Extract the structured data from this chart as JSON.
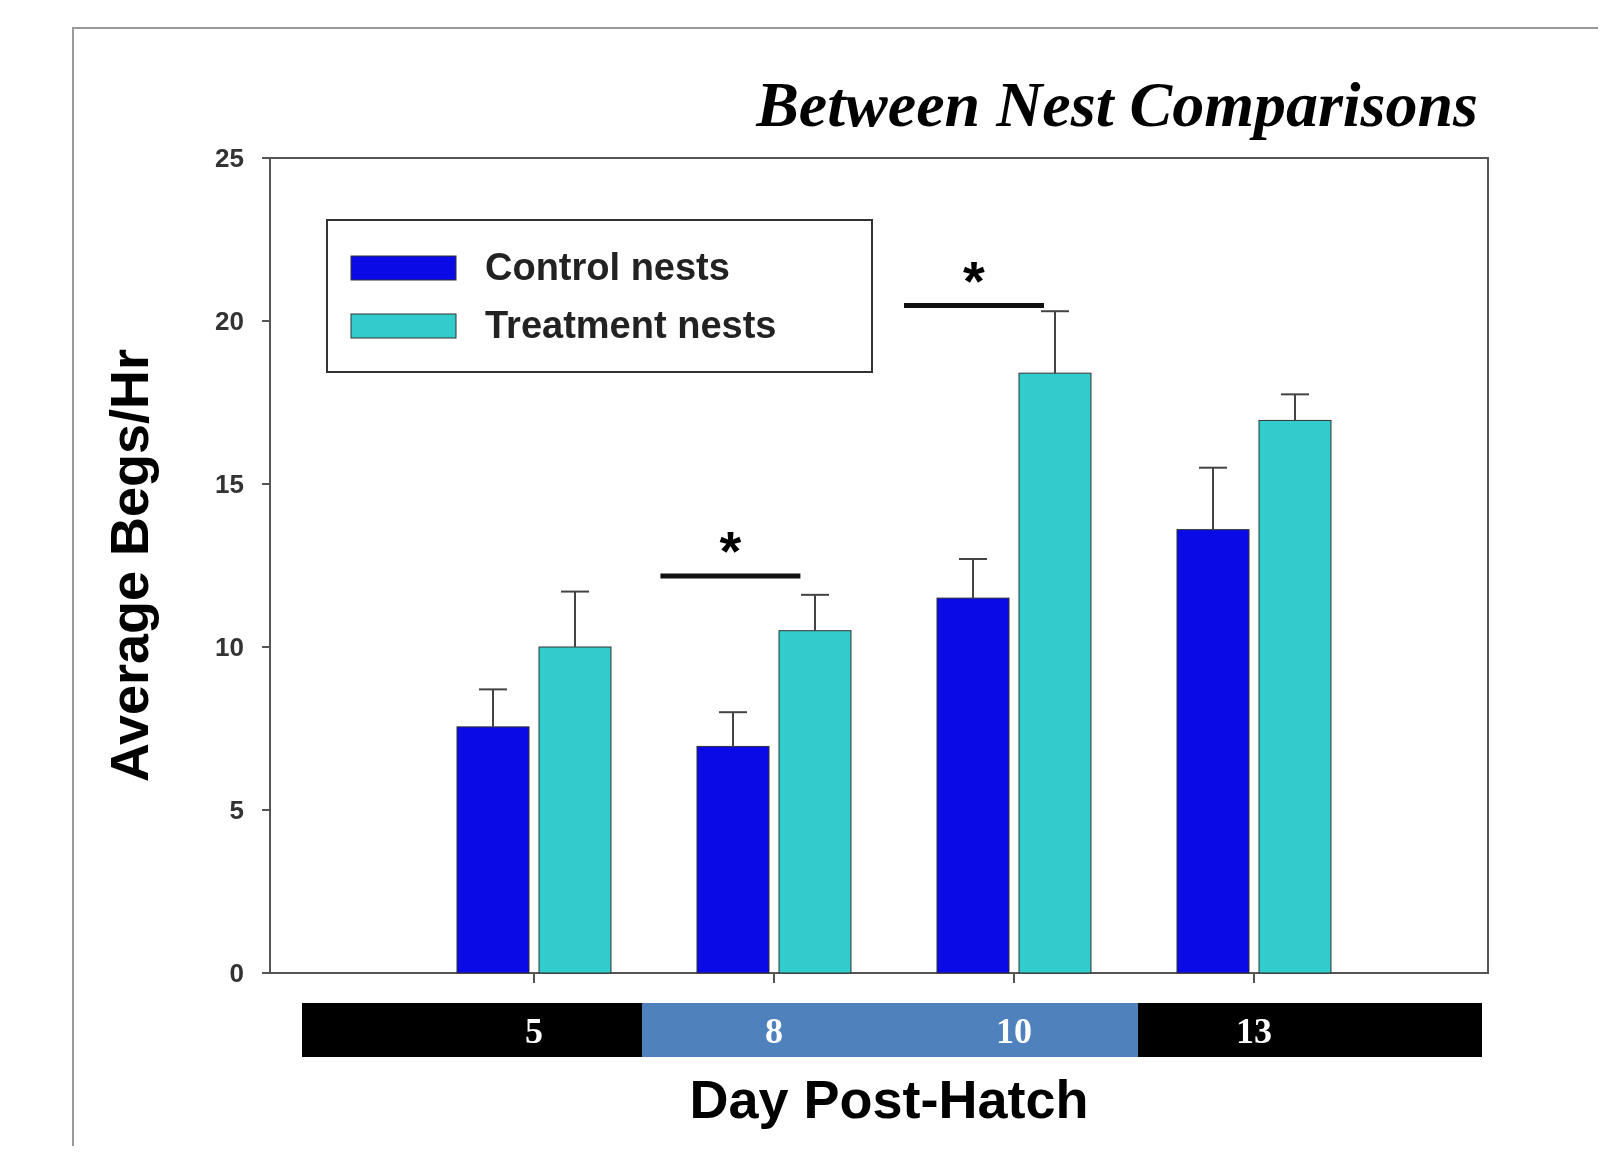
{
  "chart_data": {
    "type": "bar",
    "title": "Between Nest Comparisons",
    "xlabel": "Day Post-Hatch",
    "ylabel": "Average Begs/Hr",
    "categories": [
      "5",
      "8",
      "10",
      "13"
    ],
    "series": [
      {
        "name": "Control nests",
        "color": "#0a0ae6",
        "values": [
          7.55,
          6.95,
          11.5,
          13.6
        ],
        "errors": [
          [
            7.55,
            8.7
          ],
          [
            6.95,
            8.0
          ],
          [
            11.5,
            12.7
          ],
          [
            13.6,
            15.5
          ]
        ]
      },
      {
        "name": "Treatment nests",
        "color": "#33cccc",
        "values": [
          10.0,
          10.5,
          18.4,
          16.95
        ],
        "errors": [
          [
            10.0,
            11.7
          ],
          [
            10.5,
            11.6
          ],
          [
            18.4,
            20.3
          ],
          [
            16.95,
            17.75
          ]
        ]
      }
    ],
    "ylim": [
      0,
      25
    ],
    "yticks": [
      0,
      5,
      10,
      15,
      20,
      25
    ],
    "legend": "top left",
    "grid": false,
    "annotations": [
      "*",
      "*"
    ]
  }
}
